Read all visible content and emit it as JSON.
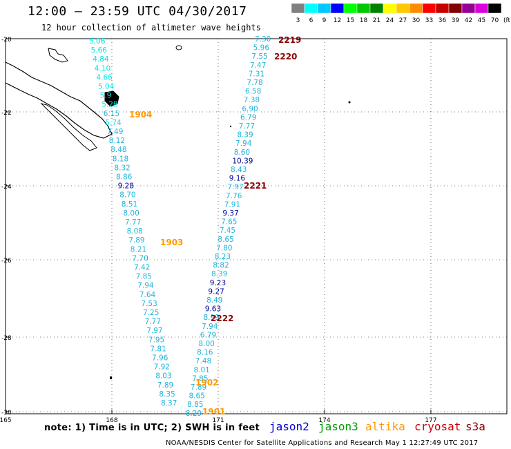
{
  "header": {
    "title": "12:00 – 23:59 UTC 04/30/2017",
    "subtitle": "12 hour collection of altimeter wave heights"
  },
  "color_scale": {
    "units": "(ft)",
    "bins": [
      {
        "label": "3",
        "color": "#808080"
      },
      {
        "label": "6",
        "color": "#00ffff"
      },
      {
        "label": "9",
        "color": "#00c8ff"
      },
      {
        "label": "12",
        "color": "#0000ff"
      },
      {
        "label": "15",
        "color": "#00ff00"
      },
      {
        "label": "18",
        "color": "#00c800"
      },
      {
        "label": "21",
        "color": "#008200"
      },
      {
        "label": "24",
        "color": "#ffff00"
      },
      {
        "label": "27",
        "color": "#ffc800"
      },
      {
        "label": "30",
        "color": "#ff8c00"
      },
      {
        "label": "33",
        "color": "#ff0000"
      },
      {
        "label": "36",
        "color": "#c80000"
      },
      {
        "label": "39",
        "color": "#820000"
      },
      {
        "label": "42",
        "color": "#960096"
      },
      {
        "label": "45",
        "color": "#dc00dc"
      },
      {
        "label": "70",
        "color": "#000000"
      }
    ]
  },
  "axes": {
    "lat_labels": [
      "-20",
      "-22",
      "-24",
      "-26",
      "-28",
      "-30"
    ],
    "lon_labels": [
      "165",
      "168",
      "171",
      "174",
      "177"
    ]
  },
  "tracks": [
    {
      "pass_labels": [
        {
          "text": "2219",
          "color": "#8b0000"
        },
        {
          "text": "2220",
          "color": "#8b0000"
        },
        {
          "text": "2221",
          "color": "#8b0000"
        },
        {
          "text": "2222",
          "color": "#8b0000"
        }
      ],
      "values": [
        {
          "v": "7.30",
          "c": "#1eb4dc"
        },
        {
          "v": "5.96",
          "c": "#1eb4dc"
        },
        {
          "v": "7.55",
          "c": "#1eb4dc"
        },
        {
          "v": "7.47",
          "c": "#1eb4dc"
        },
        {
          "v": "7.31",
          "c": "#1eb4dc"
        },
        {
          "v": "7.78",
          "c": "#1eb4dc"
        },
        {
          "v": "6.58",
          "c": "#1eb4dc"
        },
        {
          "v": "7.38",
          "c": "#1eb4dc"
        },
        {
          "v": "6.90",
          "c": "#1eb4dc"
        },
        {
          "v": "6.79",
          "c": "#1eb4dc"
        },
        {
          "v": "7.77",
          "c": "#1eb4dc"
        },
        {
          "v": "8.39",
          "c": "#1eb4dc"
        },
        {
          "v": "7.94",
          "c": "#1eb4dc"
        },
        {
          "v": "8.60",
          "c": "#1eb4dc"
        },
        {
          "v": "10.39",
          "c": "#000099"
        },
        {
          "v": "8.43",
          "c": "#1eb4dc"
        },
        {
          "v": "9.16",
          "c": "#000099"
        },
        {
          "v": "7.97",
          "c": "#1eb4dc"
        },
        {
          "v": "7.76",
          "c": "#1eb4dc"
        },
        {
          "v": "7.91",
          "c": "#1eb4dc"
        },
        {
          "v": "9.37",
          "c": "#000099"
        },
        {
          "v": "7.65",
          "c": "#1eb4dc"
        },
        {
          "v": "7.45",
          "c": "#1eb4dc"
        },
        {
          "v": "8.65",
          "c": "#1eb4dc"
        },
        {
          "v": "7.80",
          "c": "#1eb4dc"
        },
        {
          "v": "8.23",
          "c": "#1eb4dc"
        },
        {
          "v": "8.82",
          "c": "#1eb4dc"
        },
        {
          "v": "8.39",
          "c": "#1eb4dc"
        },
        {
          "v": "9.23",
          "c": "#000099"
        },
        {
          "v": "9.27",
          "c": "#000099"
        },
        {
          "v": "8.49",
          "c": "#1eb4dc"
        },
        {
          "v": "9.63",
          "c": "#000099"
        },
        {
          "v": "8.99",
          "c": "#1eb4dc"
        },
        {
          "v": "7.94",
          "c": "#1eb4dc"
        },
        {
          "v": "6.79",
          "c": "#1eb4dc"
        },
        {
          "v": "8.00",
          "c": "#1eb4dc"
        },
        {
          "v": "8.16",
          "c": "#1eb4dc"
        },
        {
          "v": "7.48",
          "c": "#1eb4dc"
        },
        {
          "v": "8.01",
          "c": "#1eb4dc"
        },
        {
          "v": "7.85",
          "c": "#1eb4dc"
        },
        {
          "v": "7.89",
          "c": "#1eb4dc"
        },
        {
          "v": "8.65",
          "c": "#1eb4dc"
        },
        {
          "v": "8.85",
          "c": "#1eb4dc"
        },
        {
          "v": "8.29",
          "c": "#1eb4dc"
        }
      ]
    },
    {
      "pass_labels": [
        {
          "text": "1904",
          "color": "#ff9900"
        },
        {
          "text": "1903",
          "color": "#ff9900"
        },
        {
          "text": "1902",
          "color": "#ff9900"
        },
        {
          "text": "1901",
          "color": "#ff9900"
        }
      ],
      "values": [
        {
          "v": "5.06",
          "c": "#00e5e5"
        },
        {
          "v": "5.66",
          "c": "#00e5e5"
        },
        {
          "v": "4.84",
          "c": "#00e5e5"
        },
        {
          "v": "4.10",
          "c": "#00e5e5"
        },
        {
          "v": "4.66",
          "c": "#00e5e5"
        },
        {
          "v": "5.04",
          "c": "#00e5e5"
        },
        {
          "v": "5.9",
          "c": "#00e5e5"
        },
        {
          "v": "5.28",
          "c": "#00e5e5"
        },
        {
          "v": "6.15",
          "c": "#1eb4dc"
        },
        {
          "v": "5.74",
          "c": "#00e5e5"
        },
        {
          "v": "7.49",
          "c": "#1eb4dc"
        },
        {
          "v": "8.12",
          "c": "#1eb4dc"
        },
        {
          "v": "8.48",
          "c": "#1eb4dc"
        },
        {
          "v": "8.18",
          "c": "#1eb4dc"
        },
        {
          "v": "8.32",
          "c": "#1eb4dc"
        },
        {
          "v": "8.86",
          "c": "#1eb4dc"
        },
        {
          "v": "9.28",
          "c": "#000099"
        },
        {
          "v": "8.70",
          "c": "#1eb4dc"
        },
        {
          "v": "8.51",
          "c": "#1eb4dc"
        },
        {
          "v": "8.00",
          "c": "#1eb4dc"
        },
        {
          "v": "7.77",
          "c": "#1eb4dc"
        },
        {
          "v": "8.08",
          "c": "#1eb4dc"
        },
        {
          "v": "7.89",
          "c": "#1eb4dc"
        },
        {
          "v": "8.21",
          "c": "#1eb4dc"
        },
        {
          "v": "7.70",
          "c": "#1eb4dc"
        },
        {
          "v": "7.42",
          "c": "#1eb4dc"
        },
        {
          "v": "7.85",
          "c": "#1eb4dc"
        },
        {
          "v": "7.94",
          "c": "#1eb4dc"
        },
        {
          "v": "7.64",
          "c": "#1eb4dc"
        },
        {
          "v": "7.53",
          "c": "#1eb4dc"
        },
        {
          "v": "7.25",
          "c": "#1eb4dc"
        },
        {
          "v": "7.77",
          "c": "#1eb4dc"
        },
        {
          "v": "7.97",
          "c": "#1eb4dc"
        },
        {
          "v": "7.95",
          "c": "#1eb4dc"
        },
        {
          "v": "7.81",
          "c": "#1eb4dc"
        },
        {
          "v": "7.96",
          "c": "#1eb4dc"
        },
        {
          "v": "7.92",
          "c": "#1eb4dc"
        },
        {
          "v": "8.03",
          "c": "#1eb4dc"
        },
        {
          "v": "7.89",
          "c": "#1eb4dc"
        },
        {
          "v": "8.35",
          "c": "#1eb4dc"
        },
        {
          "v": "8.37",
          "c": "#1eb4dc"
        }
      ]
    }
  ],
  "footer": {
    "note": "note: 1) Time is in UTC; 2) SWH is in feet",
    "satellites": [
      {
        "name": "jason2",
        "color": "#0000cc"
      },
      {
        "name": "jason3",
        "color": "#009900"
      },
      {
        "name": "altika",
        "color": "#ff9900"
      },
      {
        "name": "cryosat",
        "color": "#cc0000"
      },
      {
        "name": "s3a",
        "color": "#8b0000"
      }
    ],
    "credit": "NOAA/NESDIS Center for Satellite Applications and Research   May  1 12:27:49 UTC 2017"
  }
}
